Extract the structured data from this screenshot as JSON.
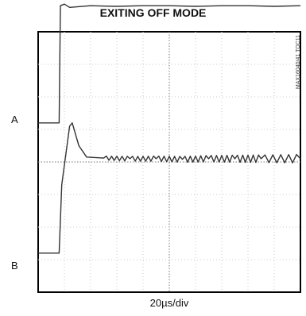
{
  "chart_data": {
    "type": "line",
    "title": "EXITING OFF MODE",
    "xlabel": "20µs/div",
    "ylabel": "",
    "x_divisions": 10,
    "y_divisions": 8,
    "grid": true,
    "figure_id": "MAX16040/41 TOC11",
    "series": [
      {
        "name": "A",
        "points": [
          [
            0,
            5.2
          ],
          [
            0.8,
            5.2
          ],
          [
            0.85,
            8.8
          ],
          [
            1.0,
            8.85
          ],
          [
            1.2,
            8.75
          ],
          [
            2,
            8.8
          ],
          [
            3,
            8.78
          ],
          [
            4,
            8.8
          ],
          [
            5,
            8.8
          ],
          [
            6,
            8.78
          ],
          [
            7,
            8.8
          ],
          [
            8,
            8.8
          ],
          [
            9,
            8.78
          ],
          [
            10,
            8.8
          ]
        ]
      },
      {
        "name": "B",
        "points": [
          [
            0,
            1.2
          ],
          [
            0.8,
            1.2
          ],
          [
            0.9,
            3.3
          ],
          [
            1.2,
            5.1
          ],
          [
            1.3,
            5.2
          ],
          [
            1.55,
            4.5
          ],
          [
            1.85,
            4.15
          ],
          [
            2.5,
            4.12
          ],
          [
            3.5,
            4.1
          ],
          [
            4.5,
            4.1
          ],
          [
            5.5,
            4.08
          ],
          [
            6.5,
            4.1
          ],
          [
            7.5,
            4.1
          ],
          [
            8.5,
            4.1
          ],
          [
            10,
            4.1
          ]
        ]
      }
    ]
  }
}
